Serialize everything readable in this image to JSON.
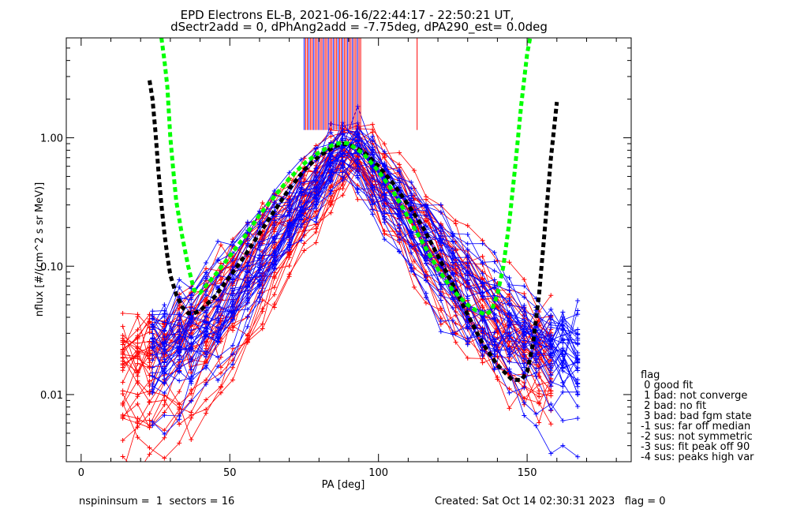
{
  "chart_data": {
    "type": "line",
    "title_line1": "EPD Electrons EL-B, 2021-06-16/22:44:17 - 22:50:21 UT,",
    "title_line2": "dSectr2add = 0, dPhAng2add = -7.75deg, dPA290_est=   0.0deg",
    "xlabel": "PA [deg]",
    "ylabel": "nflux [#/(cm^2 s sr MeV)]",
    "xlim": [
      -5,
      185
    ],
    "ylim": [
      0.003,
      6.0
    ],
    "yscale": "log",
    "x_ticks": [
      0,
      50,
      100,
      150
    ],
    "y_ticks": [
      {
        "value": 0.01,
        "label": "0.01"
      },
      {
        "value": 0.1,
        "label": "0.10"
      },
      {
        "value": 1.0,
        "label": "1.00"
      }
    ],
    "grid": false,
    "colors": {
      "red": "#ff0000",
      "blue": "#0000ff",
      "green": "#00ff00",
      "black": "#000000"
    },
    "fits": [
      {
        "color": "#000000",
        "x": [
          23,
          24,
          25,
          26,
          27,
          28,
          29,
          30,
          32,
          34,
          36,
          38,
          40,
          45,
          50,
          55,
          60,
          65,
          70,
          75,
          80,
          85,
          88,
          90,
          95,
          100,
          105,
          110,
          115,
          120,
          125,
          130,
          135,
          140,
          145,
          148,
          150,
          152,
          154,
          156,
          158,
          160
        ],
        "y": [
          2.8,
          2.0,
          1.1,
          0.55,
          0.3,
          0.18,
          0.12,
          0.085,
          0.06,
          0.048,
          0.043,
          0.043,
          0.045,
          0.058,
          0.083,
          0.12,
          0.18,
          0.27,
          0.4,
          0.56,
          0.72,
          0.85,
          0.9,
          0.88,
          0.78,
          0.6,
          0.44,
          0.3,
          0.2,
          0.12,
          0.072,
          0.042,
          0.025,
          0.017,
          0.013,
          0.013,
          0.015,
          0.025,
          0.06,
          0.2,
          0.7,
          1.9
        ]
      },
      {
        "color": "#00ff00",
        "x": [
          27,
          28,
          29,
          30,
          31,
          32,
          34,
          36,
          38,
          40,
          45,
          50,
          55,
          60,
          65,
          70,
          75,
          80,
          85,
          88,
          90,
          95,
          100,
          105,
          110,
          115,
          120,
          125,
          130,
          133,
          136,
          138,
          140,
          142,
          144,
          146,
          148,
          150,
          151
        ],
        "y": [
          6,
          4,
          2.5,
          1.0,
          0.55,
          0.32,
          0.17,
          0.1,
          0.065,
          0.062,
          0.085,
          0.12,
          0.17,
          0.25,
          0.35,
          0.48,
          0.63,
          0.77,
          0.89,
          0.92,
          0.9,
          0.75,
          0.55,
          0.38,
          0.24,
          0.15,
          0.095,
          0.065,
          0.05,
          0.045,
          0.042,
          0.045,
          0.06,
          0.1,
          0.22,
          0.6,
          1.8,
          4.5,
          6
        ]
      }
    ],
    "spike_band": {
      "x_start": 75,
      "x_end": 94,
      "y_low": 1.15,
      "y_high": 6.0,
      "count": 36
    },
    "red_spike": {
      "x": 113,
      "y_low": 1.15,
      "y_high": 6.0
    },
    "n_red_curves": 34,
    "n_blue_curves": 34
  },
  "legend": {
    "title": "flag",
    "items": [
      " 0 good fit",
      " 1 bad: not converge",
      " 2 bad: no fit",
      " 3 bad: bad fgm state",
      "-1 sus: far off median",
      "-2 sus: not symmetric",
      "-3 sus: fit peak off 90",
      "-4 sus: peaks high var"
    ]
  },
  "footer": {
    "left": "nspininsum =  1  sectors = 16",
    "right": "Created: Sat Oct 14 02:30:31 2023   flag = 0"
  }
}
